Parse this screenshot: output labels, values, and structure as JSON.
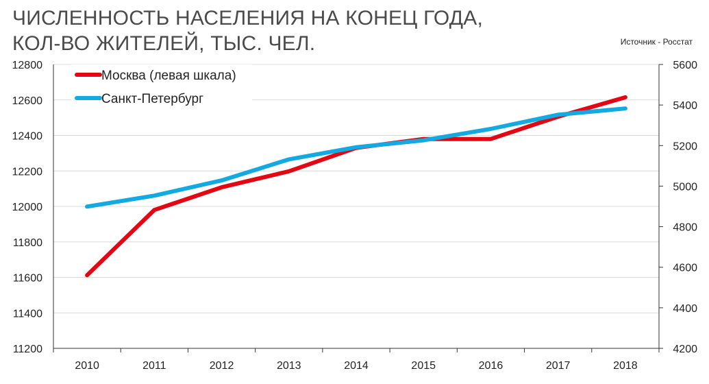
{
  "header": {
    "title_line1": "ЧИСЛЕННОСТЬ НАСЕЛЕНИЯ НА КОНЕЦ ГОДА,",
    "title_line2": "КОЛ-ВО ЖИТЕЛЕЙ, ТЫС. ЧЕЛ.",
    "source": "Источник - Росстат"
  },
  "chart_data": {
    "type": "line",
    "title": "ЧИСЛЕННОСТЬ НАСЕЛЕНИЯ НА КОНЕЦ ГОДА, КОЛ-ВО ЖИТЕЛЕЙ, ТЫС. ЧЕЛ.",
    "x": [
      "2010",
      "2011",
      "2012",
      "2013",
      "2014",
      "2015",
      "2016",
      "2017",
      "2018"
    ],
    "y_left": {
      "min": 11200,
      "max": 12800,
      "ticks": [
        11200,
        11400,
        11600,
        11800,
        12000,
        12200,
        12400,
        12600,
        12800
      ]
    },
    "y_right": {
      "min": 4200,
      "max": 5600,
      "ticks": [
        4200,
        4400,
        4600,
        4800,
        5000,
        5200,
        5400,
        5600
      ]
    },
    "grid": true,
    "legend_position": "top-left",
    "series": [
      {
        "name": "Москва (левая шкала)",
        "axis": "left",
        "color": "#e30613",
        "values": [
          11612,
          11980,
          12108,
          12198,
          12330,
          12380,
          12380,
          12506,
          12615
        ]
      },
      {
        "name": "Санкт-Петербург",
        "axis": "right",
        "color": "#13a9e1",
        "values": [
          4899,
          4953,
          5028,
          5132,
          5192,
          5226,
          5282,
          5352,
          5383
        ]
      }
    ]
  }
}
